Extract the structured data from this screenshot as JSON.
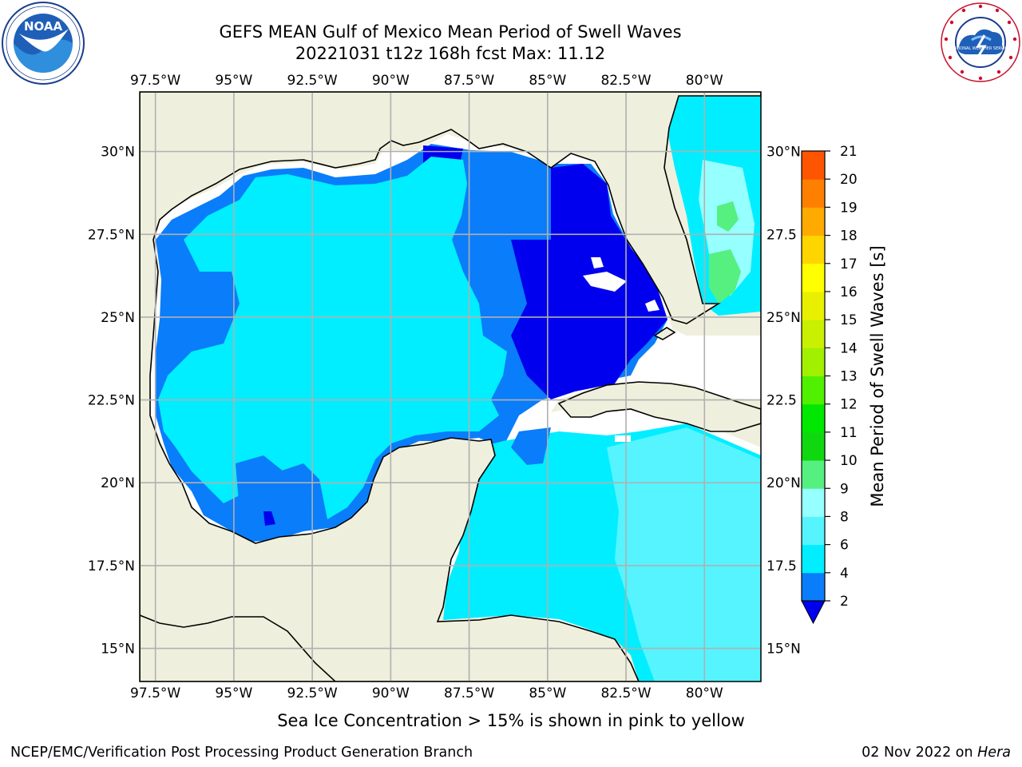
{
  "header": {
    "title_line1": "GEFS MEAN Gulf of Mexico Mean Period of Swell Waves",
    "title_line2": "20221031 t12z 168h fcst   Max: 11.12"
  },
  "logos": {
    "left": {
      "name": "NOAA",
      "ring_text": "NATIONAL OCEANIC AND ATMOSPHERIC ADMINISTRATION",
      "ring_text_bottom": "U.S. DEPARTMENT OF COMMERCE"
    },
    "right": {
      "name": "National Weather Service",
      "ring_text": "NATIONAL WEATHER SERVICE"
    }
  },
  "map": {
    "lon_labels": [
      "97.5°W",
      "95°W",
      "92.5°W",
      "90°W",
      "87.5°W",
      "85°W",
      "82.5°W",
      "80°W"
    ],
    "lon_values": [
      -97.5,
      -95,
      -92.5,
      -90,
      -87.5,
      -85,
      -82.5,
      -80
    ],
    "lat_labels_left": [
      "30°N",
      "27.5°N",
      "25°N",
      "22.5°N",
      "20°N",
      "17.5°N",
      "15°N"
    ],
    "lat_labels_right": [
      "30°N",
      "27.5",
      "25°N",
      "22.5",
      "20°N",
      "17.5",
      "15°N"
    ],
    "lat_values": [
      30,
      27.5,
      25,
      22.5,
      20,
      17.5,
      15
    ],
    "extent": {
      "lon_min": -98,
      "lon_max": -78.2,
      "lat_min": 14,
      "lat_max": 31.8
    },
    "colors": {
      "land": "#efefdd",
      "grid": "#b0b0b0",
      "coast": "#000000",
      "nodata": "#ffffff"
    }
  },
  "colorbar": {
    "label": "Mean Period of Swell Waves [s]",
    "ticks": [
      "2",
      "4",
      "6",
      "8",
      "9",
      "10",
      "11",
      "12",
      "13",
      "14",
      "15",
      "16",
      "17",
      "18",
      "19",
      "20",
      "21"
    ],
    "colors": [
      "#0a7dfa",
      "#00eeff",
      "#55f4ff",
      "#96ffff",
      "#55f080",
      "#10d810",
      "#00e800",
      "#50f000",
      "#a0f000",
      "#c8f000",
      "#e8f000",
      "#ffff00",
      "#ffd500",
      "#ffaa00",
      "#ff8000",
      "#ff5500",
      "#ff2a00",
      "#ff0000"
    ],
    "under_color": "#0000ee",
    "colors_note": "colors listed for segments between ticks, bottom to top"
  },
  "footer": {
    "note": "Sea Ice Concentration > 15% is shown in pink to yellow",
    "left": "NCEP/EMC/Verification Post Processing Product Generation Branch",
    "date": "02 Nov 2022 on ",
    "machine": "Hera"
  }
}
